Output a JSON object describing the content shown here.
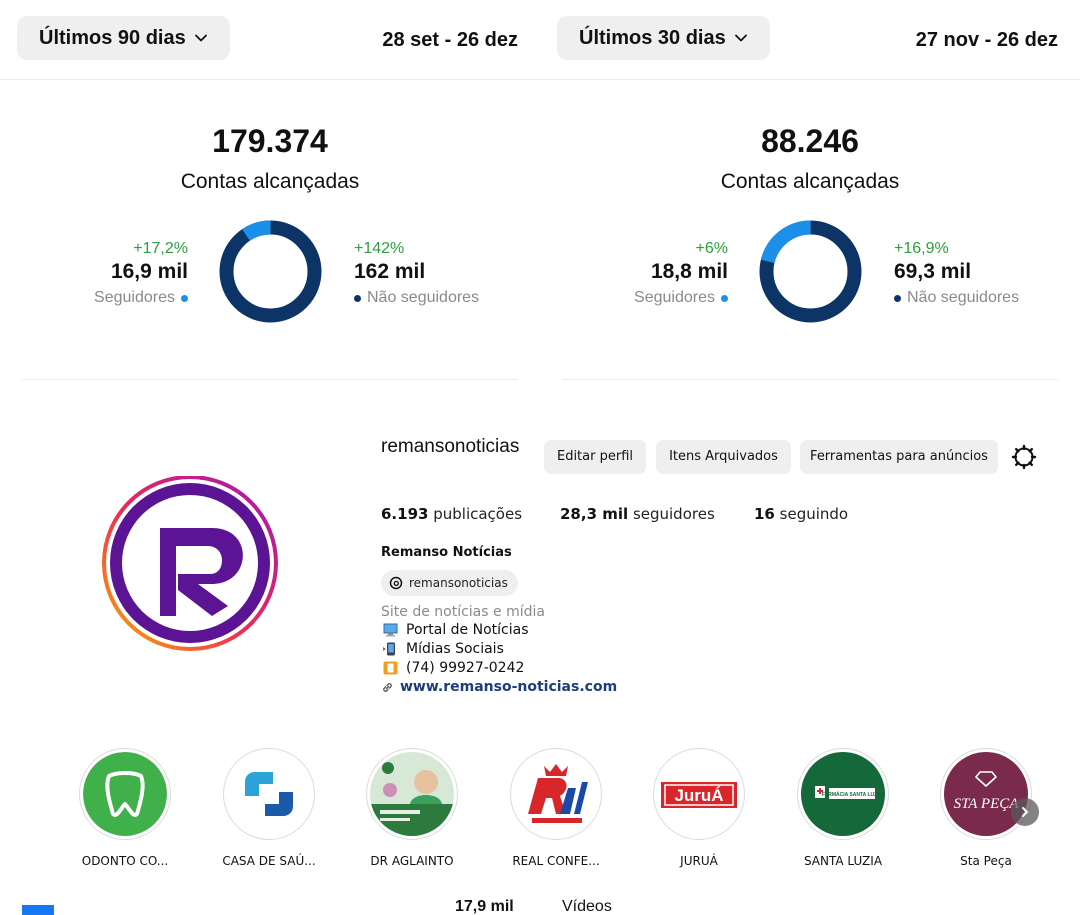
{
  "periods": [
    {
      "label": "Últimos 90 dias",
      "range": "28 set - 26 dez"
    },
    {
      "label": "Últimos 30 dias",
      "range": "27 nov - 26 dez"
    }
  ],
  "reach": [
    {
      "total": "179.374",
      "label": "Contas alcançadas",
      "followers": {
        "pct": "+17,2%",
        "value": "16,9 mil",
        "label": "Seguidores",
        "share": 0.094
      },
      "non_followers": {
        "pct": "+142%",
        "value": "162 mil",
        "label": "Não seguidores",
        "share": 0.906
      }
    },
    {
      "total": "88.246",
      "label": "Contas alcançadas",
      "followers": {
        "pct": "+6%",
        "value": "18,8 mil",
        "label": "Seguidores",
        "share": 0.213
      },
      "non_followers": {
        "pct": "+16,9%",
        "value": "69,3 mil",
        "label": "Não seguidores",
        "share": 0.787
      }
    }
  ],
  "colors": {
    "followers": "#1c8fe8",
    "non_followers": "#0d3466",
    "positive": "#2e9e3f"
  },
  "profile": {
    "username": "remansonoticias",
    "buttons": {
      "edit": "Editar perfil",
      "archived": "Itens Arquivados",
      "ads": "Ferramentas para anúncios"
    },
    "posts_count": "6.193",
    "posts_label": "publicações",
    "followers_count": "28,3 mil",
    "followers_label": "seguidores",
    "following_count": "16",
    "following_label": "seguindo",
    "display_name": "Remanso Notícias",
    "threads_handle": "remansonoticias",
    "bio_category": "Site de notícias e mídia",
    "bio_lines": [
      "Portal de Notícias",
      "Mídias Sociais",
      "(74) 99927-0242"
    ],
    "link": "www.remanso-noticias.com"
  },
  "highlights": [
    {
      "name": "ODONTO CO..."
    },
    {
      "name": "CASA DE SAÚ..."
    },
    {
      "name": "DR AGLAINTO"
    },
    {
      "name": "REAL CONFE..."
    },
    {
      "name": "JURUÁ",
      "logo": "JuruÁ"
    },
    {
      "name": "SANTA LUZIA",
      "logo": "FARMÁCIA SANTA LUZIA"
    },
    {
      "name": "Sta Peça",
      "logo": "STA PEÇA"
    }
  ],
  "bottom": {
    "value": "17,9 mil",
    "label": "Vídeos"
  }
}
